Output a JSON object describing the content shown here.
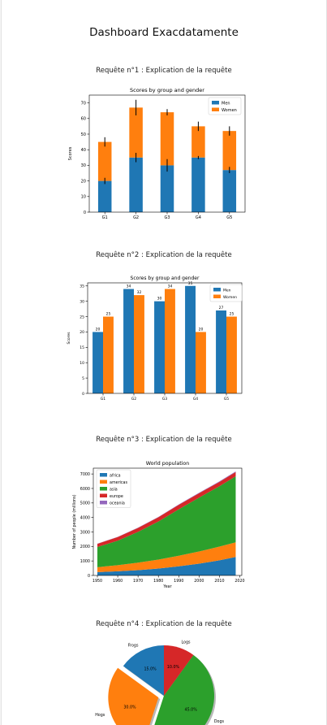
{
  "page_title": "Dashboard Exacdatamente",
  "sections": [
    {
      "title": "Requête n°1 : Explication de la requête"
    },
    {
      "title": "Requête n°2 : Explication de la requête"
    },
    {
      "title": "Requête n°3 : Explication de la requête"
    },
    {
      "title": "Requête n°4 : Explication de la requête"
    }
  ],
  "colors": {
    "blue": "#1f77b4",
    "orange": "#ff7f0e",
    "green": "#2ca02c",
    "red": "#d62728",
    "purple": "#9467bd"
  },
  "chart_data": [
    {
      "type": "bar",
      "stacked": true,
      "title": "Scores by group and gender",
      "xlabel": "",
      "ylabel": "Scores",
      "categories": [
        "G1",
        "G2",
        "G3",
        "G4",
        "G5"
      ],
      "series": [
        {
          "name": "Men",
          "values": [
            20,
            35,
            30,
            35,
            27
          ],
          "errors": [
            2,
            3,
            4,
            1,
            2
          ]
        },
        {
          "name": "Women",
          "values": [
            25,
            32,
            34,
            20,
            25
          ],
          "errors": [
            3,
            5,
            2,
            3,
            3
          ]
        }
      ],
      "ylim": [
        0,
        75
      ],
      "yticks": [
        0,
        10,
        20,
        30,
        40,
        50,
        60,
        70
      ],
      "legend": "top-right",
      "grid": false
    },
    {
      "type": "bar",
      "grouped": true,
      "title": "Scores by group and gender",
      "xlabel": "",
      "ylabel": "Scores",
      "categories": [
        "G1",
        "G2",
        "G3",
        "G4",
        "G5"
      ],
      "series": [
        {
          "name": "Men",
          "values": [
            20,
            34,
            30,
            35,
            27
          ]
        },
        {
          "name": "Women",
          "values": [
            25,
            32,
            34,
            20,
            25
          ]
        }
      ],
      "ylim": [
        0,
        36
      ],
      "yticks": [
        0,
        5,
        10,
        15,
        20,
        25,
        30,
        35
      ],
      "data_labels": true,
      "legend": "top-right",
      "grid": false
    },
    {
      "type": "area",
      "stacked": true,
      "title": "World population",
      "xlabel": "Year",
      "ylabel": "Number of people (millions)",
      "x": [
        1950,
        1960,
        1970,
        1980,
        1990,
        2000,
        2010,
        2018
      ],
      "series": [
        {
          "name": "africa",
          "values": [
            228,
            284,
            365,
            477,
            631,
            814,
            1044,
            1275
          ]
        },
        {
          "name": "americas",
          "values": [
            340,
            425,
            519,
            619,
            727,
            840,
            943,
            1006
          ]
        },
        {
          "name": "asia",
          "values": [
            1394,
            1686,
            2120,
            2625,
            3202,
            3714,
            4169,
            4560
          ]
        },
        {
          "name": "europe",
          "values": [
            220,
            253,
            276,
            295,
            310,
            303,
            294,
            293
          ]
        },
        {
          "name": "oceania",
          "values": [
            12,
            15,
            19,
            22,
            26,
            31,
            36,
            39
          ]
        }
      ],
      "xlim": [
        1948,
        2021
      ],
      "xticks": [
        1950,
        1960,
        1970,
        1980,
        1990,
        2000,
        2010,
        2020
      ],
      "ylim": [
        0,
        7400
      ],
      "yticks": [
        0,
        1000,
        2000,
        3000,
        4000,
        5000,
        6000,
        7000
      ],
      "legend": "top-left",
      "grid": false
    },
    {
      "type": "pie",
      "title": "",
      "slices": [
        {
          "label": "Frogs",
          "value": 15,
          "pct": "15.0%",
          "color": "blue",
          "explode": false
        },
        {
          "label": "Hogs",
          "value": 30,
          "pct": "30.0%",
          "color": "orange",
          "explode": true
        },
        {
          "label": "Dogs",
          "value": 45,
          "pct": "45.0%",
          "color": "green",
          "explode": false
        },
        {
          "label": "Logs",
          "value": 10,
          "pct": "10.0%",
          "color": "red",
          "explode": false
        }
      ],
      "startangle": 90,
      "shadow": true
    }
  ]
}
